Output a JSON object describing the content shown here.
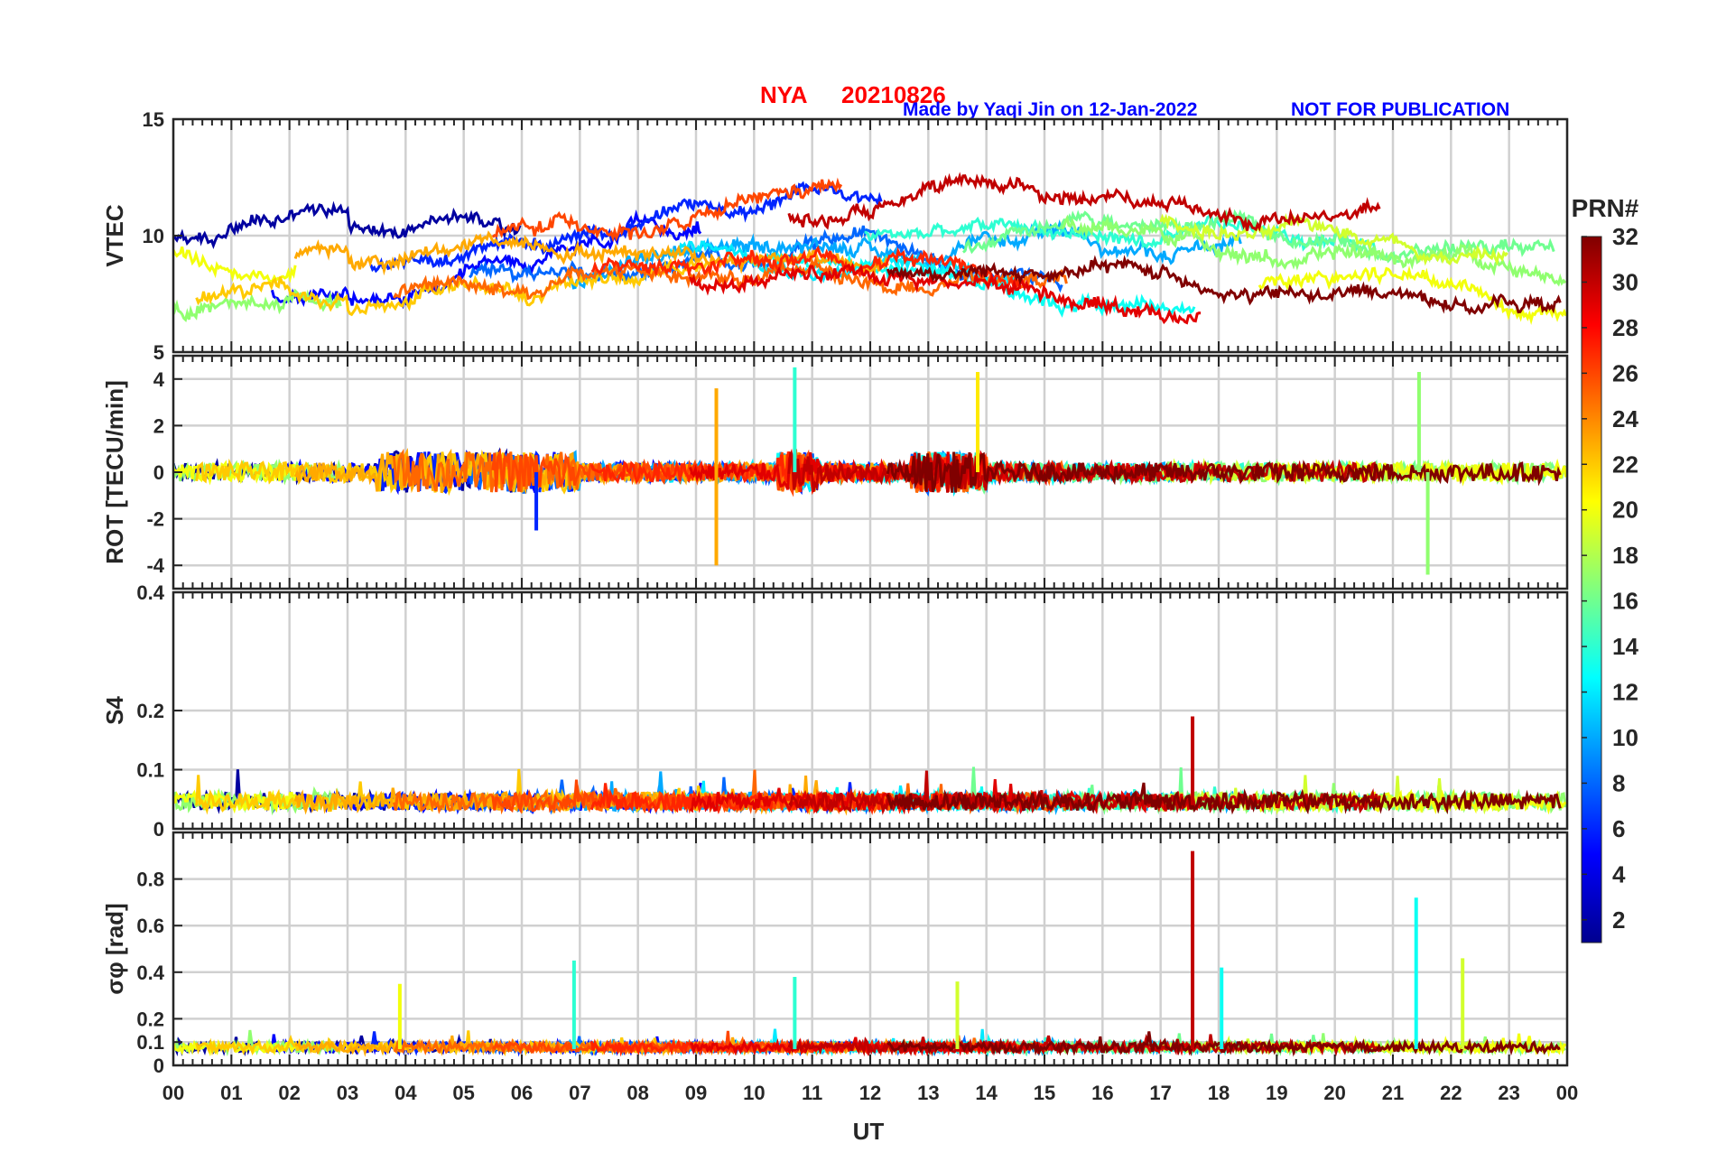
{
  "title": {
    "station": "NYA",
    "date": "20210826",
    "credit": "Made by Yaqi Jin on 12-Jan-2022",
    "notice": "NOT FOR PUBLICATION"
  },
  "colors": {
    "title": "#ff0000",
    "credit": "#0000ff",
    "grid": "#d0d0d0",
    "axis": "#262626"
  },
  "chart_data": {
    "type": "line",
    "xlabel": "UT",
    "x_range_hours": [
      0,
      24
    ],
    "x_tick_labels": [
      "00",
      "01",
      "02",
      "03",
      "04",
      "05",
      "06",
      "07",
      "08",
      "09",
      "10",
      "11",
      "12",
      "13",
      "14",
      "15",
      "16",
      "17",
      "18",
      "19",
      "20",
      "21",
      "22",
      "23",
      "00"
    ],
    "colorbar": {
      "label": "PRN#",
      "range": [
        1,
        32
      ],
      "tick_labels": [
        "2",
        "4",
        "6",
        "8",
        "10",
        "12",
        "14",
        "16",
        "18",
        "20",
        "22",
        "24",
        "26",
        "28",
        "30",
        "32"
      ]
    },
    "panels": [
      {
        "id": "vtec",
        "ylabel": "VTEC",
        "ylim": [
          5,
          15
        ],
        "ytick_labels": [
          "5",
          "10",
          "15"
        ],
        "ytick_values": [
          5,
          10,
          15
        ],
        "baseline": 8.5,
        "noise": 0.4,
        "notable_peaks": []
      },
      {
        "id": "rot",
        "ylabel": "ROT [TECU/min]",
        "ylim": [
          -5,
          5
        ],
        "ytick_labels": [
          "-4",
          "-2",
          "0",
          "2",
          "4"
        ],
        "ytick_values": [
          -4,
          -2,
          0,
          2,
          4
        ],
        "baseline": 0,
        "noise": 0.4,
        "notable_peaks": [
          {
            "t": 9.35,
            "value": 3.6,
            "prn": 23
          },
          {
            "t": 9.35,
            "value": -4.0,
            "prn": 23
          },
          {
            "t": 10.7,
            "value": 4.5,
            "prn": 14
          },
          {
            "t": 13.85,
            "value": 4.3,
            "prn": 21
          },
          {
            "t": 21.45,
            "value": 4.3,
            "prn": 17
          },
          {
            "t": 21.6,
            "value": -4.4,
            "prn": 17
          },
          {
            "t": 6.25,
            "value": -2.5,
            "prn": 6
          }
        ]
      },
      {
        "id": "s4",
        "ylabel": "S4",
        "ylim": [
          0,
          0.4
        ],
        "ytick_labels": [
          "0",
          "0.1",
          "0.2",
          "0.4"
        ],
        "ytick_values": [
          0,
          0.1,
          0.2,
          0.4
        ],
        "baseline": 0.04,
        "noise": 0.015,
        "notable_peaks": [
          {
            "t": 17.55,
            "value": 0.19,
            "prn": 30
          }
        ]
      },
      {
        "id": "sigma",
        "ylabel": "σφ [rad]",
        "ylim": [
          0,
          1
        ],
        "ytick_labels": [
          "0",
          "0.1",
          "0.2",
          "0.4",
          "0.6",
          "0.8"
        ],
        "ytick_values": [
          0,
          0.1,
          0.2,
          0.4,
          0.6,
          0.8
        ],
        "baseline": 0.07,
        "noise": 0.02,
        "notable_peaks": [
          {
            "t": 17.55,
            "value": 0.92,
            "prn": 30
          },
          {
            "t": 21.4,
            "value": 0.72,
            "prn": 13
          },
          {
            "t": 6.9,
            "value": 0.45,
            "prn": 14
          },
          {
            "t": 22.2,
            "value": 0.46,
            "prn": 19
          },
          {
            "t": 18.05,
            "value": 0.42,
            "prn": 13
          },
          {
            "t": 10.7,
            "value": 0.38,
            "prn": 14
          },
          {
            "t": 3.9,
            "value": 0.35,
            "prn": 20
          },
          {
            "t": 13.5,
            "value": 0.36,
            "prn": 19
          }
        ]
      }
    ]
  }
}
